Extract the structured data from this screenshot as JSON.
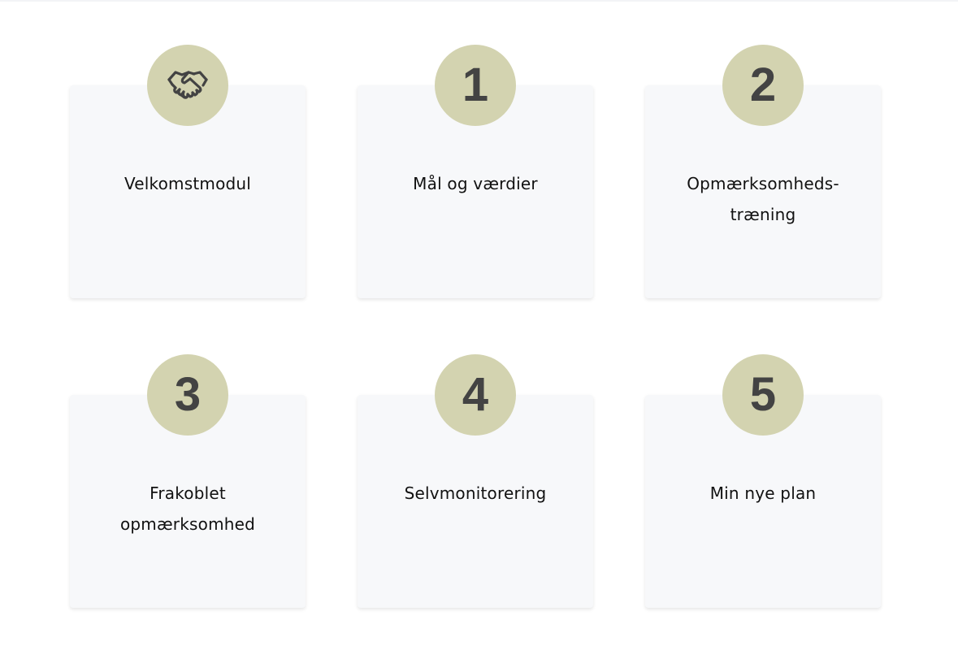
{
  "modules": [
    {
      "badge_icon": "handshake-icon",
      "badge_text": "",
      "title": "Velkomstmodul"
    },
    {
      "badge_icon": "",
      "badge_text": "1",
      "title": "Mål og værdier"
    },
    {
      "badge_icon": "",
      "badge_text": "2",
      "title": "Opmærksomheds-træning"
    },
    {
      "badge_icon": "",
      "badge_text": "3",
      "title": "Frakoblet opmærksomhed"
    },
    {
      "badge_icon": "",
      "badge_text": "4",
      "title": "Selvmonitorering"
    },
    {
      "badge_icon": "",
      "badge_text": "5",
      "title": "Min nye plan"
    }
  ],
  "colors": {
    "badge_background": "#d3d3b0",
    "badge_foreground": "#434343",
    "card_background": "#f7f8fa",
    "title_text": "#111111"
  }
}
